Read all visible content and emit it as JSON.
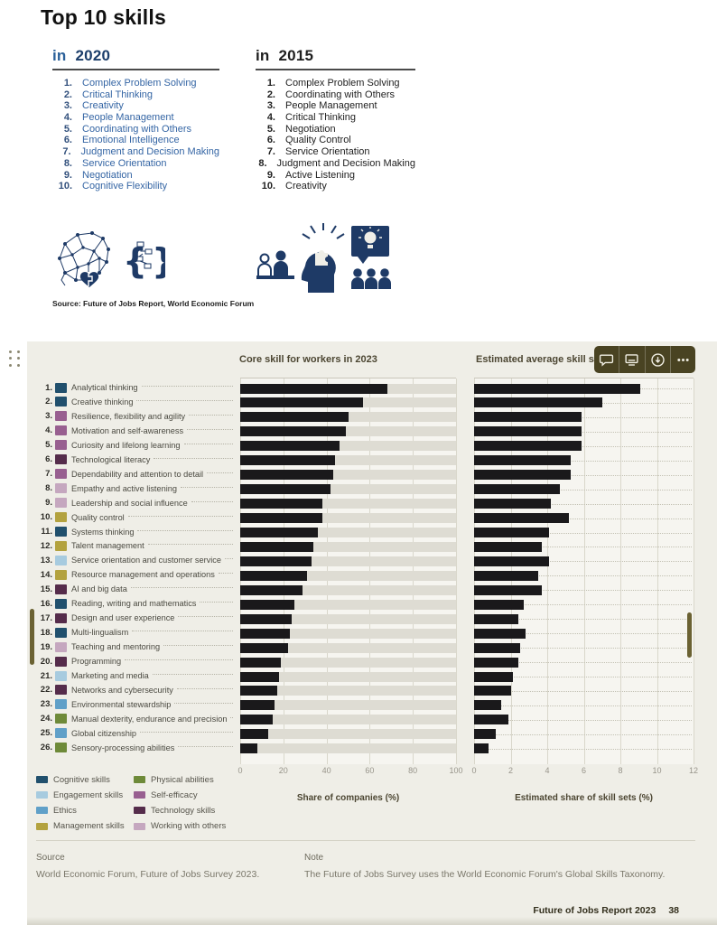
{
  "title": "Top 10 skills",
  "top_lists": [
    {
      "prefix": "in",
      "year": "2020",
      "prefix_color": "#2a6099",
      "year_color": "#1c3e6b",
      "number_color": "#33517d",
      "text_color": "#3465a4",
      "items": [
        "Complex Problem Solving",
        "Critical Thinking",
        "Creativity",
        "People Management",
        "Coordinating with Others",
        "Emotional Intelligence",
        "Judgment and Decision Making",
        "Service Orientation",
        "Negotiation",
        "Cognitive Flexibility"
      ]
    },
    {
      "prefix": "in",
      "year": "2015",
      "prefix_color": "#1e1e1e",
      "year_color": "#1e1e1e",
      "number_color": "#1e1e1e",
      "text_color": "#1e1e1e",
      "items": [
        "Complex Problem Solving",
        "Coordinating with Others",
        "People Management",
        "Critical Thinking",
        "Negotiation",
        "Quality Control",
        "Service Orientation",
        "Judgment and Decision Making",
        "Active Listening",
        "Creativity"
      ]
    }
  ],
  "top_source": "Source: Future of Jobs Report, World Economic Forum",
  "panel": {
    "background": "#efeee7",
    "left_chart_title": "Core skill for workers in 2023",
    "right_chart_title": "Estimated average skill set",
    "left_axis_label": "Share of companies (%)",
    "right_axis_label": "Estimated share of skill sets (%)",
    "toolbar_buttons": [
      "comment",
      "display",
      "download",
      "more"
    ],
    "bar_color": "#1a191b"
  },
  "categories": {
    "cognitive": {
      "label": "Cognitive skills",
      "color": "#21506d"
    },
    "engagement": {
      "label": "Engagement skills",
      "color": "#a7cbdf"
    },
    "ethics": {
      "label": "Ethics",
      "color": "#60a0c8"
    },
    "management": {
      "label": "Management skills",
      "color": "#b3a23f"
    },
    "physical": {
      "label": "Physical abilities",
      "color": "#6e8a39"
    },
    "self_efficacy": {
      "label": "Self-efficacy",
      "color": "#985f90"
    },
    "technology": {
      "label": "Technology skills",
      "color": "#552c4b"
    },
    "working_with_others": {
      "label": "Working with others",
      "color": "#c5a7bf"
    }
  },
  "legend_columns": [
    [
      "cognitive",
      "engagement",
      "ethics",
      "management"
    ],
    [
      "physical",
      "self_efficacy",
      "technology",
      "working_with_others"
    ]
  ],
  "skills": [
    {
      "rank": "1.",
      "label": "Analytical thinking",
      "category": "cognitive"
    },
    {
      "rank": "2.",
      "label": "Creative thinking",
      "category": "cognitive"
    },
    {
      "rank": "3.",
      "label": "Resilience, flexibility and agility",
      "category": "self_efficacy"
    },
    {
      "rank": "4.",
      "label": "Motivation and self-awareness",
      "category": "self_efficacy"
    },
    {
      "rank": "5.",
      "label": "Curiosity and lifelong learning",
      "category": "self_efficacy"
    },
    {
      "rank": "6.",
      "label": "Technological literacy",
      "category": "technology"
    },
    {
      "rank": "7.",
      "label": "Dependability and attention to detail",
      "category": "self_efficacy"
    },
    {
      "rank": "8.",
      "label": "Empathy and active listening",
      "category": "working_with_others"
    },
    {
      "rank": "9.",
      "label": "Leadership and social influence",
      "category": "working_with_others"
    },
    {
      "rank": "10.",
      "label": "Quality control",
      "category": "management"
    },
    {
      "rank": "11.",
      "label": "Systems thinking",
      "category": "cognitive"
    },
    {
      "rank": "12.",
      "label": "Talent management",
      "category": "management"
    },
    {
      "rank": "13.",
      "label": "Service orientation and customer service",
      "category": "engagement"
    },
    {
      "rank": "14.",
      "label": "Resource management and operations",
      "category": "management"
    },
    {
      "rank": "15.",
      "label": "AI and big data",
      "category": "technology"
    },
    {
      "rank": "16.",
      "label": "Reading, writing and mathematics",
      "category": "cognitive"
    },
    {
      "rank": "17.",
      "label": "Design and user experience",
      "category": "technology"
    },
    {
      "rank": "18.",
      "label": "Multi-lingualism",
      "category": "cognitive"
    },
    {
      "rank": "19.",
      "label": "Teaching and mentoring",
      "category": "working_with_others"
    },
    {
      "rank": "20.",
      "label": "Programming",
      "category": "technology"
    },
    {
      "rank": "21.",
      "label": "Marketing and media",
      "category": "engagement"
    },
    {
      "rank": "22.",
      "label": "Networks and cybersecurity",
      "category": "technology"
    },
    {
      "rank": "23.",
      "label": "Environmental stewardship",
      "category": "ethics"
    },
    {
      "rank": "24.",
      "label": "Manual dexterity, endurance and precision",
      "category": "physical"
    },
    {
      "rank": "25.",
      "label": "Global citizenship",
      "category": "ethics"
    },
    {
      "rank": "26.",
      "label": "Sensory-processing abilities",
      "category": "physical"
    }
  ],
  "chart_data": [
    {
      "type": "bar",
      "orientation": "horizontal",
      "title": "Core skill for workers in 2023",
      "xlabel": "Share of companies (%)",
      "xlim": [
        0,
        100
      ],
      "xticks": [
        0,
        20,
        40,
        60,
        80,
        100
      ],
      "grid": true,
      "categories": [
        "Analytical thinking",
        "Creative thinking",
        "Resilience, flexibility and agility",
        "Motivation and self-awareness",
        "Curiosity and lifelong learning",
        "Technological literacy",
        "Dependability and attention to detail",
        "Empathy and active listening",
        "Leadership and social influence",
        "Quality control",
        "Systems thinking",
        "Talent management",
        "Service orientation and customer service",
        "Resource management and operations",
        "AI and big data",
        "Reading, writing and mathematics",
        "Design and user experience",
        "Multi-lingualism",
        "Teaching and mentoring",
        "Programming",
        "Marketing and media",
        "Networks and cybersecurity",
        "Environmental stewardship",
        "Manual dexterity, endurance and precision",
        "Global citizenship",
        "Sensory-processing abilities"
      ],
      "values": [
        68,
        57,
        50,
        49,
        46,
        44,
        43,
        42,
        38,
        38,
        36,
        34,
        33,
        31,
        29,
        25,
        24,
        23,
        22,
        19,
        18,
        17,
        16,
        15,
        13,
        8
      ]
    },
    {
      "type": "bar",
      "orientation": "horizontal",
      "title": "Estimated average skill set",
      "xlabel": "Estimated share of skill sets (%)",
      "xlim": [
        0,
        12
      ],
      "xticks": [
        0,
        2,
        4,
        6,
        8,
        10,
        12
      ],
      "grid": true,
      "categories": [
        "Analytical thinking",
        "Creative thinking",
        "Resilience, flexibility and agility",
        "Motivation and self-awareness",
        "Curiosity and lifelong learning",
        "Technological literacy",
        "Dependability and attention to detail",
        "Empathy and active listening",
        "Leadership and social influence",
        "Quality control",
        "Systems thinking",
        "Talent management",
        "Service orientation and customer service",
        "Resource management and operations",
        "AI and big data",
        "Reading, writing and mathematics",
        "Design and user experience",
        "Multi-lingualism",
        "Teaching and mentoring",
        "Programming",
        "Marketing and media",
        "Networks and cybersecurity",
        "Environmental stewardship",
        "Manual dexterity, endurance and precision",
        "Global citizenship",
        "Sensory-processing abilities"
      ],
      "values": [
        9.1,
        7.0,
        5.9,
        5.9,
        5.9,
        5.3,
        5.3,
        4.7,
        4.2,
        5.2,
        4.1,
        3.7,
        4.1,
        3.5,
        3.7,
        2.7,
        2.4,
        2.8,
        2.5,
        2.4,
        2.1,
        2.0,
        1.5,
        1.9,
        1.2,
        0.8
      ]
    }
  ],
  "source_block": {
    "label": "Source",
    "text": "World Economic Forum, Future of Jobs Survey 2023."
  },
  "note_block": {
    "label": "Note",
    "text": "The Future of Jobs Survey uses the World Economic Forum's Global Skills Taxonomy."
  },
  "footer": {
    "report": "Future of Jobs Report 2023",
    "page": "38"
  }
}
